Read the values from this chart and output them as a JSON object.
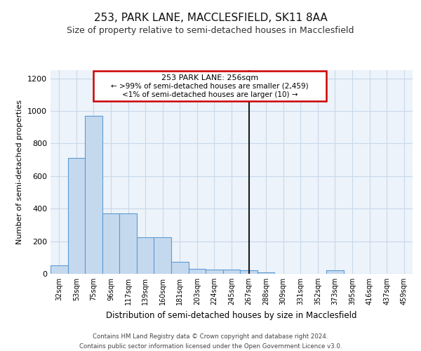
{
  "title": "253, PARK LANE, MACCLESFIELD, SK11 8AA",
  "subtitle": "Size of property relative to semi-detached houses in Macclesfield",
  "xlabel": "Distribution of semi-detached houses by size in Macclesfield",
  "ylabel": "Number of semi-detached properties",
  "footer_line1": "Contains HM Land Registry data © Crown copyright and database right 2024.",
  "footer_line2": "Contains public sector information licensed under the Open Government Licence v3.0.",
  "categories": [
    "32sqm",
    "53sqm",
    "75sqm",
    "96sqm",
    "117sqm",
    "139sqm",
    "160sqm",
    "181sqm",
    "203sqm",
    "224sqm",
    "245sqm",
    "267sqm",
    "288sqm",
    "309sqm",
    "331sqm",
    "352sqm",
    "373sqm",
    "395sqm",
    "416sqm",
    "437sqm",
    "459sqm"
  ],
  "values": [
    50,
    710,
    970,
    370,
    370,
    225,
    225,
    75,
    30,
    25,
    25,
    20,
    10,
    2,
    2,
    2,
    20,
    2,
    2,
    2,
    2
  ],
  "bar_color": "#c5d9ee",
  "bar_edge_color": "#5b9bd5",
  "vline_index": 11,
  "annotation_text_line1": "253 PARK LANE: 256sqm",
  "annotation_text_line2": "← >99% of semi-detached houses are smaller (2,459)",
  "annotation_text_line3": "<1% of semi-detached houses are larger (10) →",
  "annotation_box_color": "#cc0000",
  "vline_color": "#1a1a1a",
  "grid_color": "#c8d8e8",
  "background_color": "#edf3fa",
  "ylim": [
    0,
    1250
  ],
  "yticks": [
    0,
    200,
    400,
    600,
    800,
    1000,
    1200
  ],
  "title_fontsize": 11,
  "subtitle_fontsize": 9
}
